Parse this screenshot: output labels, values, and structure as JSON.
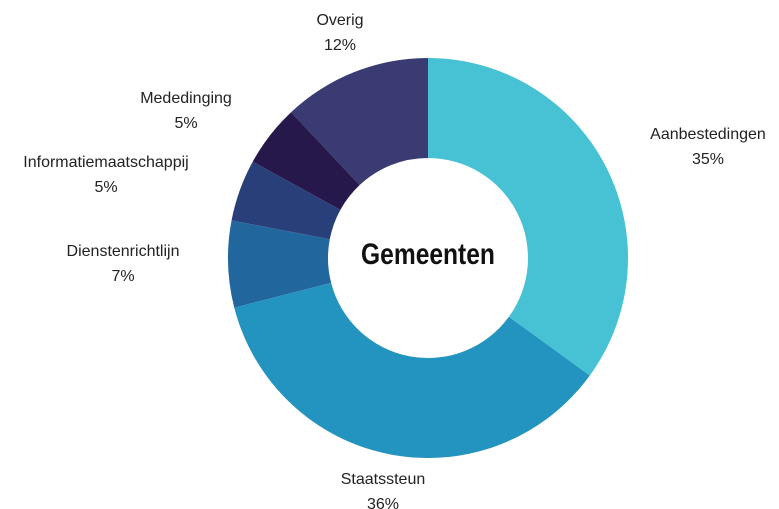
{
  "chart_data": {
    "type": "donut",
    "center_label": "Gemeenten",
    "categories": [
      "Aanbestedingen",
      "Staatssteun",
      "Dienstenrichtlijn",
      "Informatiemaatschappij",
      "Mededinging",
      "Overig"
    ],
    "values": [
      35,
      36,
      7,
      5,
      5,
      12
    ],
    "value_labels": [
      "35%",
      "36%",
      "7%",
      "5%",
      "5%",
      "12%"
    ],
    "colors": [
      "#47c1d4",
      "#2394bf",
      "#22669e",
      "#283f7a",
      "#26184a",
      "#3b3b73"
    ]
  }
}
